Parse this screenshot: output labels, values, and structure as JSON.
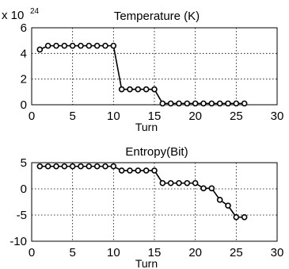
{
  "chart_data": [
    {
      "type": "line",
      "title": "Temperature (K)",
      "xlabel": "Turn",
      "ylabel": "",
      "y_scale_label": "x 10",
      "y_scale_exponent": "24",
      "xlim": [
        0,
        30
      ],
      "ylim": [
        0,
        6
      ],
      "xticks": [
        "0",
        "5",
        "10",
        "15",
        "20",
        "25",
        "30"
      ],
      "yticks": [
        "0",
        "2",
        "4",
        "6"
      ],
      "xtick_values": [
        0,
        5,
        10,
        15,
        20,
        25,
        30
      ],
      "ytick_values": [
        0,
        2,
        4,
        6
      ],
      "grid": true,
      "marker": "circle",
      "x": [
        1,
        2,
        3,
        4,
        5,
        6,
        7,
        8,
        9,
        10,
        11,
        12,
        13,
        14,
        15,
        16,
        17,
        18,
        19,
        20,
        21,
        22,
        23,
        24,
        25,
        26
      ],
      "values": [
        4.3,
        4.6,
        4.6,
        4.6,
        4.6,
        4.6,
        4.6,
        4.6,
        4.6,
        4.6,
        1.2,
        1.2,
        1.2,
        1.2,
        1.2,
        0.1,
        0.1,
        0.1,
        0.1,
        0.1,
        0.1,
        0.1,
        0.1,
        0.1,
        0.1,
        0.1
      ]
    },
    {
      "type": "line",
      "title": "Entropy(Bit)",
      "xlabel": "Turn",
      "ylabel": "",
      "xlim": [
        0,
        30
      ],
      "ylim": [
        -10,
        5
      ],
      "xticks": [
        "0",
        "5",
        "10",
        "15",
        "20",
        "25",
        "30"
      ],
      "yticks": [
        "-10",
        "-5",
        "0",
        "5"
      ],
      "xtick_values": [
        0,
        5,
        10,
        15,
        20,
        25,
        30
      ],
      "ytick_values": [
        -10,
        -5,
        0,
        5
      ],
      "grid": true,
      "marker": "circle",
      "x": [
        1,
        2,
        3,
        4,
        5,
        6,
        7,
        8,
        9,
        10,
        11,
        12,
        13,
        14,
        15,
        16,
        17,
        18,
        19,
        20,
        21,
        22,
        23,
        24,
        25,
        26
      ],
      "values": [
        4.3,
        4.3,
        4.3,
        4.3,
        4.3,
        4.3,
        4.3,
        4.3,
        4.3,
        4.3,
        3.5,
        3.5,
        3.5,
        3.5,
        3.5,
        1.1,
        1.1,
        1.1,
        1.1,
        1.1,
        0.1,
        0.1,
        -2.1,
        -3.2,
        -5.4,
        -5.4
      ]
    }
  ]
}
